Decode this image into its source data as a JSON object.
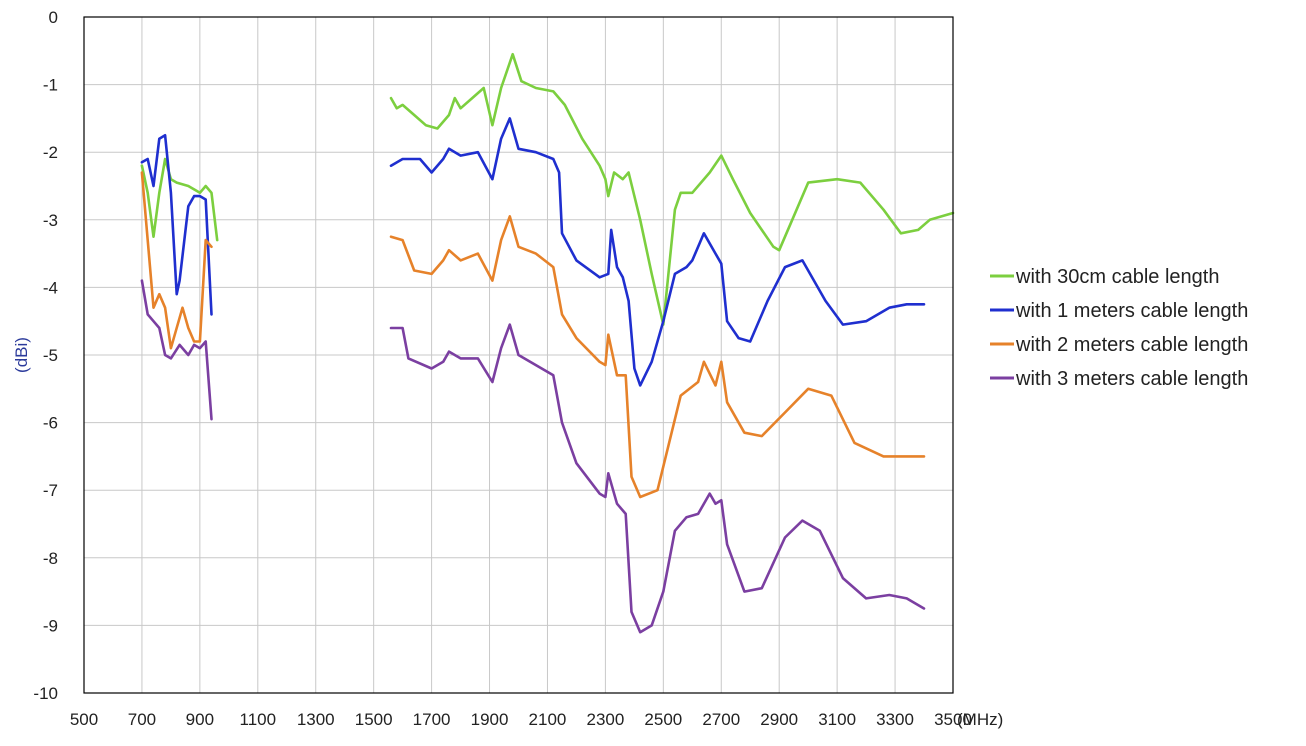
{
  "chart_data": {
    "type": "line",
    "ylabel": "(dBi)",
    "xunit": "(MHz)",
    "xlim": [
      500,
      3500
    ],
    "ylim": [
      -10,
      0
    ],
    "xticks": [
      500,
      700,
      900,
      1100,
      1300,
      1500,
      1700,
      1900,
      2100,
      2300,
      2500,
      2700,
      2900,
      3100,
      3300,
      3500
    ],
    "yticks": [
      0,
      -1,
      -2,
      -3,
      -4,
      -5,
      -6,
      -7,
      -8,
      -9,
      -10
    ],
    "grid": true,
    "legend_position": "right",
    "series": [
      {
        "name": "with 30cm cable length",
        "color": "#7ccf3f",
        "segments": [
          [
            [
              700,
              -2.2
            ],
            [
              720,
              -2.6
            ],
            [
              740,
              -3.25
            ],
            [
              760,
              -2.6
            ],
            [
              780,
              -2.1
            ],
            [
              800,
              -2.4
            ],
            [
              820,
              -2.45
            ],
            [
              860,
              -2.5
            ],
            [
              900,
              -2.6
            ],
            [
              920,
              -2.5
            ],
            [
              940,
              -2.6
            ],
            [
              960,
              -3.3
            ]
          ],
          [
            [
              1560,
              -1.2
            ],
            [
              1580,
              -1.35
            ],
            [
              1600,
              -1.3
            ],
            [
              1640,
              -1.45
            ],
            [
              1680,
              -1.6
            ],
            [
              1720,
              -1.65
            ],
            [
              1760,
              -1.45
            ],
            [
              1780,
              -1.2
            ],
            [
              1800,
              -1.35
            ],
            [
              1840,
              -1.2
            ],
            [
              1880,
              -1.05
            ],
            [
              1910,
              -1.6
            ],
            [
              1940,
              -1.05
            ],
            [
              1980,
              -0.55
            ],
            [
              2010,
              -0.95
            ],
            [
              2060,
              -1.05
            ],
            [
              2120,
              -1.1
            ],
            [
              2160,
              -1.3
            ],
            [
              2220,
              -1.8
            ],
            [
              2280,
              -2.2
            ],
            [
              2300,
              -2.4
            ],
            [
              2310,
              -2.65
            ],
            [
              2330,
              -2.3
            ],
            [
              2360,
              -2.4
            ],
            [
              2380,
              -2.3
            ],
            [
              2420,
              -3.0
            ],
            [
              2460,
              -3.8
            ],
            [
              2500,
              -4.55
            ],
            [
              2540,
              -2.85
            ],
            [
              2560,
              -2.6
            ],
            [
              2600,
              -2.6
            ],
            [
              2660,
              -2.3
            ],
            [
              2700,
              -2.05
            ],
            [
              2740,
              -2.4
            ],
            [
              2800,
              -2.9
            ],
            [
              2880,
              -3.4
            ],
            [
              2900,
              -3.45
            ],
            [
              2940,
              -3.05
            ],
            [
              3000,
              -2.45
            ],
            [
              3100,
              -2.4
            ],
            [
              3180,
              -2.45
            ],
            [
              3260,
              -2.85
            ],
            [
              3320,
              -3.2
            ],
            [
              3380,
              -3.15
            ],
            [
              3420,
              -3.0
            ],
            [
              3500,
              -2.9
            ]
          ]
        ]
      },
      {
        "name": "with 1 meters cable length",
        "color": "#1f2fcf",
        "segments": [
          [
            [
              700,
              -2.15
            ],
            [
              720,
              -2.1
            ],
            [
              740,
              -2.5
            ],
            [
              760,
              -1.8
            ],
            [
              780,
              -1.75
            ],
            [
              800,
              -2.6
            ],
            [
              820,
              -4.1
            ],
            [
              830,
              -3.9
            ],
            [
              860,
              -2.8
            ],
            [
              880,
              -2.65
            ],
            [
              900,
              -2.65
            ],
            [
              920,
              -2.7
            ],
            [
              940,
              -4.4
            ]
          ],
          [
            [
              1560,
              -2.2
            ],
            [
              1600,
              -2.1
            ],
            [
              1660,
              -2.1
            ],
            [
              1700,
              -2.3
            ],
            [
              1740,
              -2.1
            ],
            [
              1760,
              -1.95
            ],
            [
              1800,
              -2.05
            ],
            [
              1860,
              -2.0
            ],
            [
              1910,
              -2.4
            ],
            [
              1940,
              -1.8
            ],
            [
              1970,
              -1.5
            ],
            [
              2000,
              -1.95
            ],
            [
              2060,
              -2.0
            ],
            [
              2120,
              -2.1
            ],
            [
              2140,
              -2.3
            ],
            [
              2150,
              -3.2
            ],
            [
              2200,
              -3.6
            ],
            [
              2280,
              -3.85
            ],
            [
              2310,
              -3.8
            ],
            [
              2320,
              -3.15
            ],
            [
              2340,
              -3.7
            ],
            [
              2360,
              -3.85
            ],
            [
              2380,
              -4.2
            ],
            [
              2400,
              -5.2
            ],
            [
              2420,
              -5.45
            ],
            [
              2460,
              -5.1
            ],
            [
              2500,
              -4.5
            ],
            [
              2540,
              -3.8
            ],
            [
              2580,
              -3.7
            ],
            [
              2600,
              -3.6
            ],
            [
              2640,
              -3.2
            ],
            [
              2680,
              -3.5
            ],
            [
              2700,
              -3.65
            ],
            [
              2720,
              -4.5
            ],
            [
              2760,
              -4.75
            ],
            [
              2800,
              -4.8
            ],
            [
              2860,
              -4.2
            ],
            [
              2920,
              -3.7
            ],
            [
              2980,
              -3.6
            ],
            [
              3060,
              -4.2
            ],
            [
              3120,
              -4.55
            ],
            [
              3200,
              -4.5
            ],
            [
              3280,
              -4.3
            ],
            [
              3340,
              -4.25
            ],
            [
              3400,
              -4.25
            ]
          ]
        ]
      },
      {
        "name": "with 2 meters cable length",
        "color": "#e6822a",
        "segments": [
          [
            [
              700,
              -2.3
            ],
            [
              720,
              -3.3
            ],
            [
              740,
              -4.3
            ],
            [
              760,
              -4.1
            ],
            [
              780,
              -4.3
            ],
            [
              800,
              -4.9
            ],
            [
              840,
              -4.3
            ],
            [
              860,
              -4.6
            ],
            [
              880,
              -4.8
            ],
            [
              900,
              -4.8
            ],
            [
              920,
              -3.3
            ],
            [
              940,
              -3.4
            ]
          ],
          [
            [
              1560,
              -3.25
            ],
            [
              1600,
              -3.3
            ],
            [
              1640,
              -3.75
            ],
            [
              1700,
              -3.8
            ],
            [
              1740,
              -3.6
            ],
            [
              1760,
              -3.45
            ],
            [
              1800,
              -3.6
            ],
            [
              1860,
              -3.5
            ],
            [
              1910,
              -3.9
            ],
            [
              1940,
              -3.3
            ],
            [
              1970,
              -2.95
            ],
            [
              2000,
              -3.4
            ],
            [
              2060,
              -3.5
            ],
            [
              2120,
              -3.7
            ],
            [
              2150,
              -4.4
            ],
            [
              2200,
              -4.75
            ],
            [
              2280,
              -5.1
            ],
            [
              2300,
              -5.15
            ],
            [
              2310,
              -4.7
            ],
            [
              2340,
              -5.3
            ],
            [
              2370,
              -5.3
            ],
            [
              2390,
              -6.8
            ],
            [
              2420,
              -7.1
            ],
            [
              2480,
              -7.0
            ],
            [
              2520,
              -6.3
            ],
            [
              2560,
              -5.6
            ],
            [
              2620,
              -5.4
            ],
            [
              2640,
              -5.1
            ],
            [
              2680,
              -5.45
            ],
            [
              2700,
              -5.1
            ],
            [
              2720,
              -5.7
            ],
            [
              2780,
              -6.15
            ],
            [
              2840,
              -6.2
            ],
            [
              2920,
              -5.85
            ],
            [
              3000,
              -5.5
            ],
            [
              3080,
              -5.6
            ],
            [
              3160,
              -6.3
            ],
            [
              3260,
              -6.5
            ],
            [
              3340,
              -6.5
            ],
            [
              3400,
              -6.5
            ]
          ]
        ]
      },
      {
        "name": "with 3 meters cable length",
        "color": "#7b3fa1",
        "segments": [
          [
            [
              700,
              -3.9
            ],
            [
              720,
              -4.4
            ],
            [
              740,
              -4.5
            ],
            [
              760,
              -4.6
            ],
            [
              780,
              -5.0
            ],
            [
              800,
              -5.05
            ],
            [
              830,
              -4.85
            ],
            [
              860,
              -5.0
            ],
            [
              880,
              -4.85
            ],
            [
              900,
              -4.9
            ],
            [
              920,
              -4.8
            ],
            [
              940,
              -5.95
            ]
          ],
          [
            [
              1560,
              -4.6
            ],
            [
              1600,
              -4.6
            ],
            [
              1620,
              -5.05
            ],
            [
              1700,
              -5.2
            ],
            [
              1740,
              -5.1
            ],
            [
              1760,
              -4.95
            ],
            [
              1800,
              -5.05
            ],
            [
              1860,
              -5.05
            ],
            [
              1910,
              -5.4
            ],
            [
              1940,
              -4.9
            ],
            [
              1970,
              -4.55
            ],
            [
              2000,
              -5.0
            ],
            [
              2060,
              -5.15
            ],
            [
              2120,
              -5.3
            ],
            [
              2150,
              -6.0
            ],
            [
              2200,
              -6.6
            ],
            [
              2280,
              -7.05
            ],
            [
              2300,
              -7.1
            ],
            [
              2310,
              -6.75
            ],
            [
              2340,
              -7.2
            ],
            [
              2370,
              -7.35
            ],
            [
              2390,
              -8.8
            ],
            [
              2420,
              -9.1
            ],
            [
              2460,
              -9.0
            ],
            [
              2500,
              -8.5
            ],
            [
              2540,
              -7.6
            ],
            [
              2580,
              -7.4
            ],
            [
              2620,
              -7.35
            ],
            [
              2660,
              -7.05
            ],
            [
              2680,
              -7.2
            ],
            [
              2700,
              -7.15
            ],
            [
              2720,
              -7.8
            ],
            [
              2780,
              -8.5
            ],
            [
              2840,
              -8.45
            ],
            [
              2920,
              -7.7
            ],
            [
              2980,
              -7.45
            ],
            [
              3040,
              -7.6
            ],
            [
              3120,
              -8.3
            ],
            [
              3200,
              -8.6
            ],
            [
              3280,
              -8.55
            ],
            [
              3340,
              -8.6
            ],
            [
              3400,
              -8.75
            ]
          ]
        ]
      }
    ]
  }
}
